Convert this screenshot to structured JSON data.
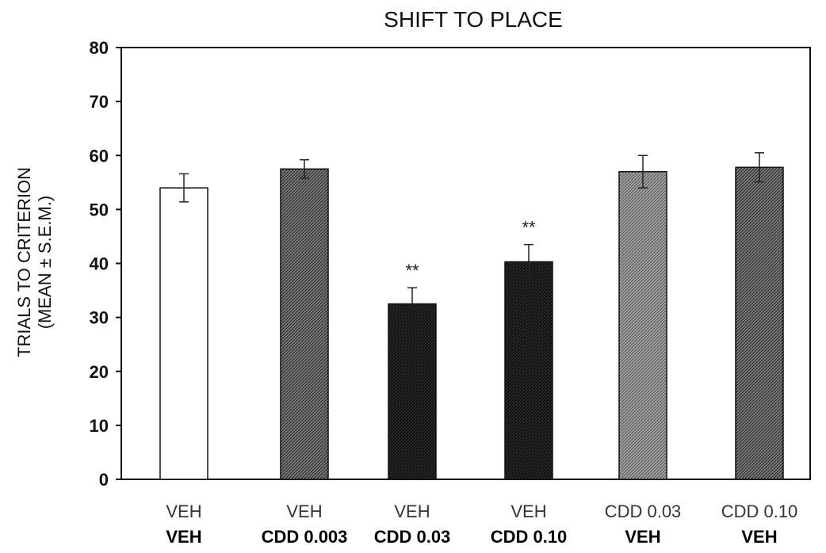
{
  "chart_data": {
    "type": "bar",
    "title": "SHIFT TO PLACE",
    "ylabel_line1": "TRIALS TO CRITERION",
    "ylabel_line2": "(MEAN ± S.E.M.)",
    "xlabel": "",
    "ylim": [
      0,
      80
    ],
    "yticks": [
      "0",
      "10",
      "20",
      "30",
      "40",
      "50",
      "60",
      "70",
      "80"
    ],
    "grid": false,
    "categories": [
      {
        "line1": "VEH",
        "line2": "VEH"
      },
      {
        "line1": "VEH",
        "line2": "CDD 0.003"
      },
      {
        "line1": "VEH",
        "line2": "CDD 0.03"
      },
      {
        "line1": "VEH",
        "line2": "CDD 0.10"
      },
      {
        "line1": "CDD 0.03",
        "line2": "VEH"
      },
      {
        "line1": "CDD 0.10",
        "line2": "VEH"
      }
    ],
    "values": [
      54,
      57.5,
      32.5,
      40.3,
      57,
      57.8
    ],
    "errors": [
      2.6,
      1.7,
      3,
      3.2,
      3,
      2.7
    ],
    "significance": [
      "",
      "",
      "**",
      "**",
      "",
      ""
    ],
    "bar_fills": [
      "white",
      "medium-dark-hatch",
      "dark-hatch",
      "dark-hatch",
      "light-hatch",
      "medium-dark-hatch"
    ]
  }
}
